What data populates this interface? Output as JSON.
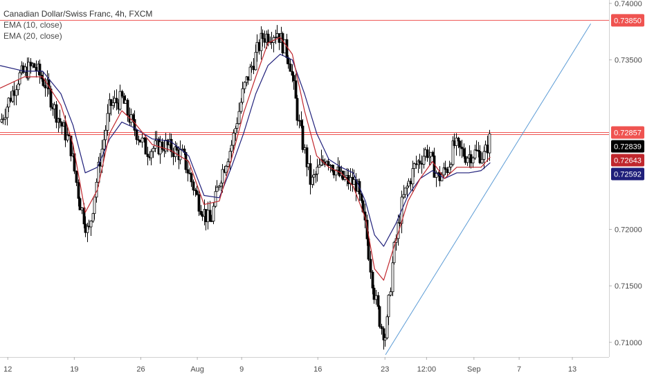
{
  "chart_data": {
    "type": "candlestick",
    "title": "Canadian Dollar/Swiss Franc, 4h, FXCM",
    "indicators": [
      {
        "name": "EMA (10, close)",
        "color": "#c0272d"
      },
      {
        "name": "EMA (20, close)",
        "color": "#1f1f7a"
      }
    ],
    "xlim": [
      0,
      10000
    ],
    "ylim": [
      0.7087,
      0.7403
    ],
    "y_ticks": [
      "0.74000",
      "0.73500",
      "0.72000",
      "0.71500",
      "0.71000"
    ],
    "y_tick_values": [
      0.74,
      0.735,
      0.72,
      0.715,
      0.71
    ],
    "x_ticks": [
      "12",
      "19",
      "26",
      "Aug",
      "9",
      "16",
      "23",
      "12:00",
      "Sep",
      "7",
      "13"
    ],
    "x_tick_values": [
      128,
      1220,
      2312,
      3240,
      3968,
      5219,
      6321,
      7004,
      7782,
      8524,
      9398
    ],
    "price_labels": [
      {
        "text": "0.73850",
        "value": 0.7385,
        "bg": "#ef5350",
        "fg": "#ffffff"
      },
      {
        "text": "0.72857",
        "value": 0.72857,
        "bg": "#ef5350",
        "fg": "#ffffff"
      },
      {
        "text": "0.72839",
        "value": 0.72839,
        "bg": "#000000",
        "fg": "#ffffff"
      },
      {
        "text": "0.72643",
        "value": 0.72643,
        "bg": "#c0272d",
        "fg": "#ffffff"
      },
      {
        "text": "0.72592",
        "value": 0.72592,
        "bg": "#1f1f7a",
        "fg": "#ffffff"
      }
    ],
    "horizontal_lines": [
      {
        "value": 0.7385,
        "color": "#ef5350"
      },
      {
        "value": 0.72857,
        "color": "#ef5350"
      },
      {
        "value": 0.72839,
        "color": "#ef5350"
      }
    ],
    "trend_line": {
      "x": [
        6330,
        9700
      ],
      "y": [
        0.7089,
        0.7382
      ],
      "color": "#5b9bd5"
    },
    "candle_color": "#000000",
    "price_path": {
      "x": [
        0,
        300,
        550,
        750,
        900,
        1150,
        1300,
        1450,
        1600,
        1800,
        2000,
        2150,
        2400,
        2700,
        3000,
        3250,
        3450,
        3600,
        3800,
        4000,
        4300,
        4550,
        4750,
        4900,
        5100,
        5350,
        5600,
        5850,
        6000,
        6150,
        6250,
        6330,
        6450,
        6600,
        6800,
        7000,
        7200,
        7350,
        7450,
        7650,
        7800,
        7950,
        8050
      ],
      "y": [
        0.7295,
        0.7335,
        0.7345,
        0.7328,
        0.7305,
        0.7275,
        0.7225,
        0.7195,
        0.725,
        0.731,
        0.7315,
        0.7295,
        0.727,
        0.7275,
        0.7265,
        0.7225,
        0.7205,
        0.7245,
        0.7275,
        0.7325,
        0.737,
        0.7375,
        0.735,
        0.7295,
        0.724,
        0.7265,
        0.7245,
        0.724,
        0.72,
        0.714,
        0.7115,
        0.7105,
        0.7175,
        0.7225,
        0.7255,
        0.727,
        0.7245,
        0.7255,
        0.7275,
        0.7265,
        0.7268,
        0.7265,
        0.7283
      ]
    },
    "ema10": {
      "x": [
        0,
        400,
        700,
        1000,
        1200,
        1400,
        1600,
        1800,
        2000,
        2200,
        2500,
        2800,
        3100,
        3350,
        3600,
        3800,
        4000,
        4200,
        4400,
        4600,
        4800,
        5000,
        5200,
        5400,
        5600,
        5800,
        6000,
        6150,
        6300,
        6500,
        6700,
        6900,
        7100,
        7300,
        7500,
        7700,
        7900,
        8050
      ],
      "y": [
        0.7325,
        0.7335,
        0.7335,
        0.731,
        0.7275,
        0.7215,
        0.7235,
        0.7285,
        0.7305,
        0.7295,
        0.7275,
        0.727,
        0.726,
        0.7222,
        0.7225,
        0.7262,
        0.7303,
        0.7335,
        0.7365,
        0.737,
        0.7355,
        0.7305,
        0.7265,
        0.7255,
        0.725,
        0.7238,
        0.721,
        0.7165,
        0.7155,
        0.719,
        0.7225,
        0.7245,
        0.726,
        0.7245,
        0.7255,
        0.7255,
        0.7255,
        0.7264
      ]
    },
    "ema20": {
      "x": [
        0,
        400,
        700,
        1000,
        1200,
        1400,
        1600,
        1800,
        2000,
        2200,
        2500,
        2800,
        3100,
        3350,
        3600,
        3800,
        4000,
        4200,
        4400,
        4600,
        4800,
        5000,
        5200,
        5400,
        5600,
        5800,
        6000,
        6150,
        6300,
        6500,
        6700,
        6900,
        7100,
        7300,
        7500,
        7700,
        7900,
        8050
      ],
      "y": [
        0.7345,
        0.734,
        0.734,
        0.732,
        0.7292,
        0.725,
        0.7255,
        0.728,
        0.7295,
        0.729,
        0.728,
        0.7278,
        0.7265,
        0.723,
        0.7228,
        0.7255,
        0.7285,
        0.732,
        0.7345,
        0.7355,
        0.735,
        0.732,
        0.7285,
        0.7262,
        0.7255,
        0.725,
        0.7225,
        0.7195,
        0.7185,
        0.7205,
        0.723,
        0.7245,
        0.7252,
        0.7245,
        0.725,
        0.725,
        0.7252,
        0.7259
      ]
    }
  }
}
